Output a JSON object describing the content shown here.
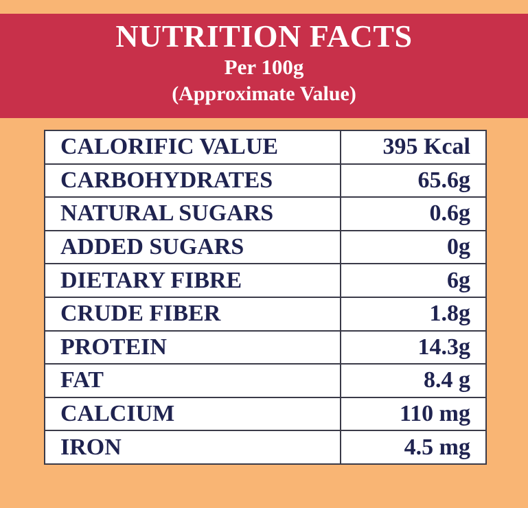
{
  "header": {
    "title": "NUTRITION FACTS",
    "subtitle": "Per 100g",
    "note": "(Approximate Value)"
  },
  "table": {
    "rows": [
      [
        "CALORIFIC VALUE",
        "395 Kcal"
      ],
      [
        "CARBOHYDRATES",
        "65.6g"
      ],
      [
        "NATURAL SUGARS",
        "0.6g"
      ],
      [
        "ADDED SUGARS",
        "0g"
      ],
      [
        "DIETARY FIBRE",
        "6g"
      ],
      [
        "CRUDE FIBER",
        "1.8g"
      ],
      [
        "PROTEIN",
        "14.3g"
      ],
      [
        "FAT",
        "8.4 g"
      ],
      [
        "CALCIUM",
        "110 mg"
      ],
      [
        "IRON",
        "4.5 mg"
      ]
    ]
  }
}
